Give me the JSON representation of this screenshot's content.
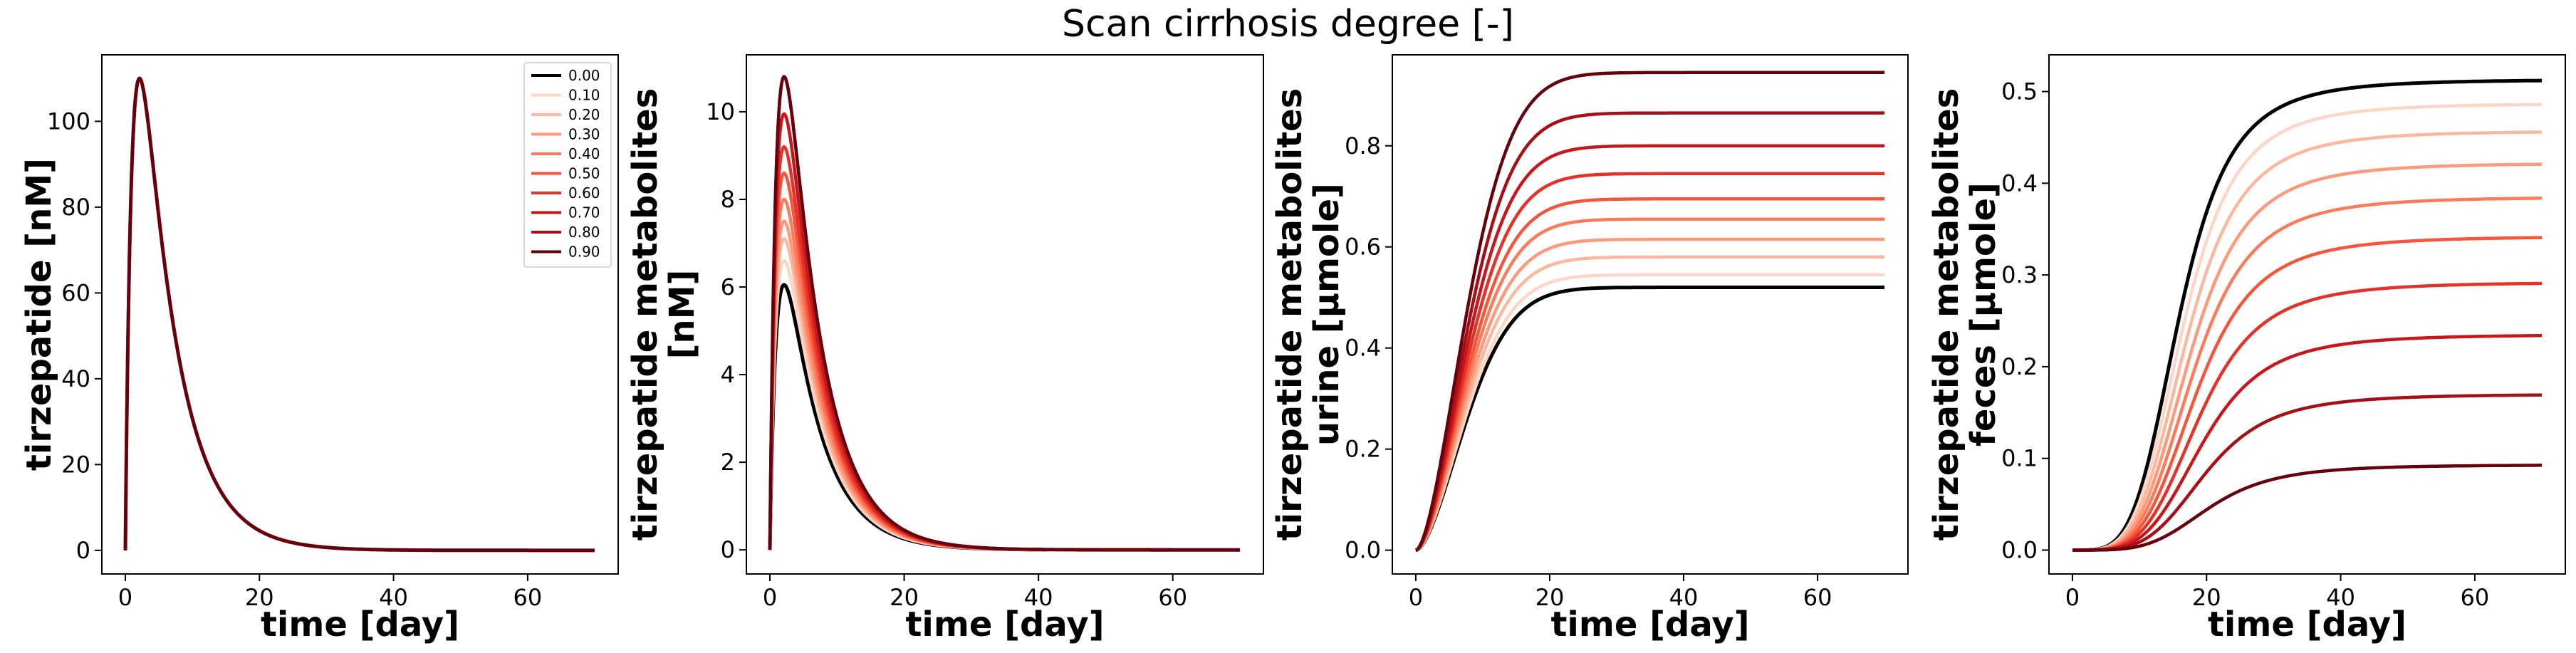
{
  "title": "Scan cirrhosis degree [-]",
  "legend": {
    "placement": "top-right of first panel",
    "labels": [
      "0.00",
      "0.10",
      "0.20",
      "0.30",
      "0.40",
      "0.50",
      "0.60",
      "0.70",
      "0.80",
      "0.90"
    ]
  },
  "series_colors": [
    "#000000",
    "#fcd6c6",
    "#fcb89e",
    "#fc9a7b",
    "#fb7b5b",
    "#f6553c",
    "#e53228",
    "#c8171c",
    "#a50f15",
    "#67000d"
  ],
  "chart_data": [
    {
      "type": "line",
      "title": "",
      "xlabel": "time [day]",
      "ylabel": [
        "tirzepatide [nM]"
      ],
      "xlim": [
        -3.5,
        73.5
      ],
      "ylim": [
        -5.5,
        115.5
      ],
      "xticks": [
        0,
        20,
        40,
        60
      ],
      "yticks": [
        0,
        20,
        40,
        60,
        80,
        100
      ],
      "xticklabels": [
        "0",
        "20",
        "40",
        "60"
      ],
      "yticklabels": [
        "0",
        "20",
        "40",
        "60",
        "80",
        "100"
      ],
      "grid": false,
      "series": [
        {
          "name": "0.00",
          "peak": 110,
          "tpeak": 3.4
        },
        {
          "name": "0.10",
          "peak": 110,
          "tpeak": 3.4
        },
        {
          "name": "0.20",
          "peak": 110,
          "tpeak": 3.4
        },
        {
          "name": "0.30",
          "peak": 110,
          "tpeak": 3.4
        },
        {
          "name": "0.40",
          "peak": 110,
          "tpeak": 3.4
        },
        {
          "name": "0.50",
          "peak": 110,
          "tpeak": 3.4
        },
        {
          "name": "0.60",
          "peak": 110,
          "tpeak": 3.4
        },
        {
          "name": "0.70",
          "peak": 110,
          "tpeak": 3.4
        },
        {
          "name": "0.80",
          "peak": 110,
          "tpeak": 3.4
        },
        {
          "name": "0.90",
          "peak": 110,
          "tpeak": 3.4
        }
      ]
    },
    {
      "type": "line",
      "title": "",
      "xlabel": "time [day]",
      "ylabel": [
        "tirzepatide metabolites",
        "[nM]"
      ],
      "xlim": [
        -3.5,
        73.5
      ],
      "ylim": [
        -0.55,
        11.3
      ],
      "xticks": [
        0,
        20,
        40,
        60
      ],
      "yticks": [
        0,
        2,
        4,
        6,
        8,
        10
      ],
      "xticklabels": [
        "0",
        "20",
        "40",
        "60"
      ],
      "yticklabels": [
        "0",
        "2",
        "4",
        "6",
        "8",
        "10"
      ],
      "grid": false,
      "series": [
        {
          "name": "0.00",
          "peak": 6.05,
          "tpeak": 4.0
        },
        {
          "name": "0.10",
          "peak": 6.6,
          "tpeak": 4.0
        },
        {
          "name": "0.20",
          "peak": 7.1,
          "tpeak": 4.0
        },
        {
          "name": "0.30",
          "peak": 7.5,
          "tpeak": 4.0
        },
        {
          "name": "0.40",
          "peak": 8.0,
          "tpeak": 4.0
        },
        {
          "name": "0.50",
          "peak": 8.6,
          "tpeak": 4.0
        },
        {
          "name": "0.60",
          "peak": 9.2,
          "tpeak": 4.0
        },
        {
          "name": "0.70",
          "peak": 9.95,
          "tpeak": 4.0
        },
        {
          "name": "0.80",
          "peak": 10.8,
          "tpeak": 4.0
        },
        {
          "name": "0.90",
          "peak": 10.8,
          "tpeak": 4.0
        }
      ]
    },
    {
      "type": "line",
      "title": "",
      "xlabel": "time [day]",
      "ylabel": [
        "tirzepatide metabolites",
        "urine [µmole]"
      ],
      "xlim": [
        -3.5,
        73.5
      ],
      "ylim": [
        -0.047,
        0.98
      ],
      "xticks": [
        0,
        20,
        40,
        60
      ],
      "yticks": [
        0.0,
        0.2,
        0.4,
        0.6,
        0.8
      ],
      "xticklabels": [
        "0",
        "20",
        "40",
        "60"
      ],
      "yticklabels": [
        "0.0",
        "0.2",
        "0.4",
        "0.6",
        "0.8"
      ],
      "grid": false,
      "series": [
        {
          "name": "0.00",
          "final": 0.52
        },
        {
          "name": "0.10",
          "final": 0.545
        },
        {
          "name": "0.20",
          "final": 0.58
        },
        {
          "name": "0.30",
          "final": 0.615
        },
        {
          "name": "0.40",
          "final": 0.655
        },
        {
          "name": "0.50",
          "final": 0.695
        },
        {
          "name": "0.60",
          "final": 0.745
        },
        {
          "name": "0.70",
          "final": 0.8
        },
        {
          "name": "0.80",
          "final": 0.865
        },
        {
          "name": "0.90",
          "final": 0.945
        }
      ]
    },
    {
      "type": "line",
      "title": "",
      "xlabel": "time [day]",
      "ylabel": [
        "tirzepatide metabolites",
        "feces [µmole]"
      ],
      "xlim": [
        -3.5,
        73.5
      ],
      "ylim": [
        -0.026,
        0.54
      ],
      "xticks": [
        0,
        20,
        40,
        60
      ],
      "yticks": [
        0.0,
        0.1,
        0.2,
        0.3,
        0.4,
        0.5
      ],
      "xticklabels": [
        "0",
        "20",
        "40",
        "60"
      ],
      "yticklabels": [
        "0.0",
        "0.1",
        "0.2",
        "0.3",
        "0.4",
        "0.5"
      ],
      "grid": false,
      "series": [
        {
          "name": "0.00",
          "final": 0.513
        },
        {
          "name": "0.10",
          "final": 0.487
        },
        {
          "name": "0.20",
          "final": 0.457
        },
        {
          "name": "0.30",
          "final": 0.422
        },
        {
          "name": "0.40",
          "final": 0.385
        },
        {
          "name": "0.50",
          "final": 0.342
        },
        {
          "name": "0.60",
          "final": 0.292
        },
        {
          "name": "0.70",
          "final": 0.235
        },
        {
          "name": "0.80",
          "final": 0.17
        },
        {
          "name": "0.90",
          "final": 0.093
        }
      ]
    }
  ]
}
